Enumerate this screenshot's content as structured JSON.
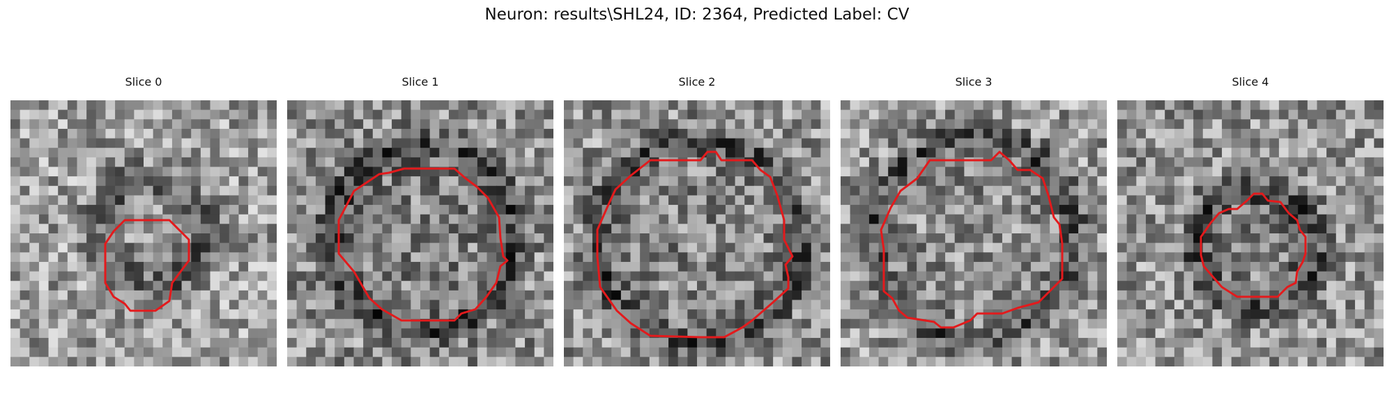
{
  "figure": {
    "title": "Neuron: results\\SHL24, ID: 2364, Predicted Label: CV",
    "contour_color": "#e31a1c"
  },
  "panels": [
    {
      "title": "Slice 0"
    },
    {
      "title": "Slice 1"
    },
    {
      "title": "Slice 2"
    },
    {
      "title": "Slice 3"
    },
    {
      "title": "Slice 4"
    }
  ]
}
